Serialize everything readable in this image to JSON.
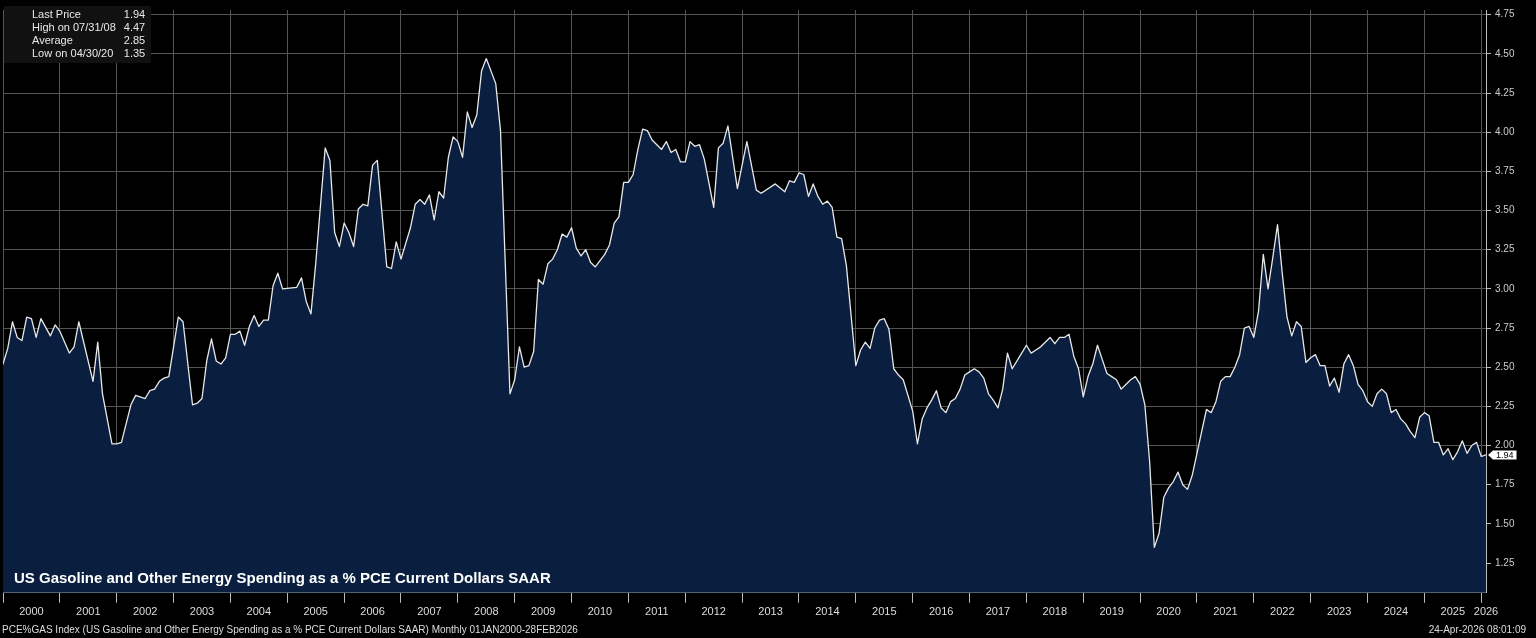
{
  "chart_data": {
    "type": "area",
    "title": "US Gasoline and Other Energy Spending as a % PCE Current Dollars SAAR",
    "x": [
      "2000-01",
      "2000-02",
      "2000-03",
      "2000-04",
      "2000-05",
      "2000-06",
      "2000-07",
      "2000-08",
      "2000-09",
      "2000-11",
      "2000-12",
      "2001-01",
      "2001-03",
      "2001-04",
      "2001-05",
      "2001-08",
      "2001-09",
      "2001-10",
      "2001-12",
      "2002-01",
      "2002-02",
      "2002-04",
      "2002-05",
      "2002-07",
      "2002-08",
      "2002-09",
      "2002-10",
      "2002-11",
      "2002-12",
      "2003-02",
      "2003-03",
      "2003-05",
      "2003-06",
      "2003-07",
      "2003-08",
      "2003-09",
      "2003-10",
      "2003-11",
      "2003-12",
      "2004-01",
      "2004-02",
      "2004-03",
      "2004-04",
      "2004-05",
      "2004-06",
      "2004-07",
      "2004-08",
      "2004-09",
      "2004-10",
      "2004-11",
      "2004-12",
      "2005-03",
      "2005-04",
      "2005-05",
      "2005-06",
      "2005-07",
      "2005-09",
      "2005-10",
      "2005-11",
      "2005-12",
      "2006-01",
      "2006-02",
      "2006-03",
      "2006-04",
      "2006-05",
      "2006-06",
      "2006-07",
      "2006-08",
      "2006-10",
      "2006-11",
      "2006-12",
      "2007-01",
      "2007-03",
      "2007-04",
      "2007-05",
      "2007-06",
      "2007-07",
      "2007-08",
      "2007-09",
      "2007-10",
      "2007-11",
      "2007-12",
      "2008-01",
      "2008-02",
      "2008-03",
      "2008-04",
      "2008-05",
      "2008-06",
      "2008-07",
      "2008-09",
      "2008-10",
      "2008-12",
      "2009-01",
      "2009-02",
      "2009-03",
      "2009-04",
      "2009-05",
      "2009-06",
      "2009-07",
      "2009-08",
      "2009-09",
      "2009-10",
      "2009-11",
      "2009-12",
      "2010-01",
      "2010-02",
      "2010-03",
      "2010-04",
      "2010-05",
      "2010-06",
      "2010-07",
      "2010-08",
      "2010-09",
      "2010-10",
      "2010-11",
      "2010-12",
      "2011-01",
      "2011-02",
      "2011-03",
      "2011-04",
      "2011-05",
      "2011-06",
      "2011-07",
      "2011-08",
      "2011-09",
      "2011-10",
      "2011-11",
      "2011-12",
      "2012-01",
      "2012-02",
      "2012-03",
      "2012-04",
      "2012-05",
      "2012-07",
      "2012-08",
      "2012-09",
      "2012-10",
      "2012-12",
      "2013-02",
      "2013-04",
      "2013-05",
      "2013-08",
      "2013-10",
      "2013-11",
      "2013-12",
      "2014-01",
      "2014-02",
      "2014-03",
      "2014-04",
      "2014-05",
      "2014-06",
      "2014-07",
      "2014-08",
      "2014-09",
      "2014-10",
      "2014-11",
      "2015-01",
      "2015-02",
      "2015-03",
      "2015-04",
      "2015-05",
      "2015-06",
      "2015-07",
      "2015-08",
      "2015-09",
      "2015-10",
      "2015-11",
      "2016-01",
      "2016-02",
      "2016-03",
      "2016-04",
      "2016-05",
      "2016-06",
      "2016-07",
      "2016-08",
      "2016-09",
      "2016-10",
      "2016-11",
      "2016-12",
      "2017-01",
      "2017-02",
      "2017-03",
      "2017-04",
      "2017-05",
      "2017-06",
      "2017-07",
      "2017-08",
      "2017-09",
      "2017-10",
      "2017-12",
      "2018-01",
      "2018-02",
      "2018-03",
      "2018-04",
      "2018-06",
      "2018-07",
      "2018-08",
      "2018-09",
      "2018-10",
      "2018-11",
      "2018-12",
      "2019-01",
      "2019-02",
      "2019-03",
      "2019-04",
      "2019-05",
      "2019-06",
      "2019-07",
      "2019-08",
      "2019-09",
      "2019-10",
      "2019-11",
      "2019-12",
      "2020-01",
      "2020-02",
      "2020-03",
      "2020-04",
      "2020-05",
      "2020-06",
      "2020-07",
      "2020-08",
      "2020-09",
      "2020-10",
      "2020-11",
      "2020-12",
      "2021-01",
      "2021-02",
      "2021-03",
      "2021-04",
      "2021-05",
      "2021-06",
      "2021-07",
      "2021-08",
      "2021-09",
      "2021-10",
      "2021-11",
      "2021-12",
      "2022-01",
      "2022-02",
      "2022-03",
      "2022-04",
      "2022-05",
      "2022-06",
      "2022-07",
      "2022-08",
      "2022-09",
      "2022-10",
      "2022-11",
      "2022-12",
      "2023-01",
      "2023-02",
      "2023-03",
      "2023-04",
      "2023-05",
      "2023-06",
      "2023-07",
      "2023-08",
      "2023-09",
      "2023-10",
      "2023-11",
      "2023-12",
      "2024-01",
      "2024-02",
      "2024-03",
      "2024-04",
      "2024-05",
      "2024-06",
      "2024-07",
      "2024-08",
      "2024-09",
      "2024-10",
      "2024-11",
      "2024-12",
      "2025-01",
      "2025-02",
      "2025-03",
      "2025-04",
      "2025-05",
      "2025-06",
      "2025-07",
      "2025-08",
      "2025-09",
      "2025-10",
      "2025-11",
      "2025-12",
      "2026-01",
      "2026-02"
    ],
    "series": [
      {
        "color": "#0a1f3f",
        "values": [
          2.52,
          2.62,
          2.79,
          2.69,
          2.67,
          2.82,
          2.81,
          2.69,
          2.81,
          2.7,
          2.77,
          2.73,
          2.59,
          2.63,
          2.79,
          2.41,
          2.66,
          2.33,
          2.01,
          2.01,
          2.02,
          2.26,
          2.32,
          2.3,
          2.35,
          2.36,
          2.41,
          2.43,
          2.44,
          2.82,
          2.79,
          2.26,
          2.27,
          2.3,
          2.54,
          2.68,
          2.54,
          2.52,
          2.56,
          2.71,
          2.71,
          2.73,
          2.64,
          2.76,
          2.83,
          2.76,
          2.8,
          2.8,
          3.02,
          3.1,
          3.0,
          3.01,
          3.07,
          2.92,
          2.84,
          3.16,
          3.9,
          3.82,
          3.36,
          3.27,
          3.42,
          3.36,
          3.27,
          3.51,
          3.54,
          3.53,
          3.79,
          3.82,
          3.14,
          3.13,
          3.3,
          3.19,
          3.39,
          3.54,
          3.57,
          3.54,
          3.6,
          3.44,
          3.62,
          3.58,
          3.84,
          3.97,
          3.94,
          3.84,
          4.13,
          4.03,
          4.11,
          4.39,
          4.47,
          4.31,
          4.01,
          2.33,
          2.42,
          2.63,
          2.5,
          2.51,
          2.6,
          3.06,
          3.03,
          3.16,
          3.19,
          3.25,
          3.35,
          3.33,
          3.39,
          3.26,
          3.21,
          3.25,
          3.17,
          3.14,
          3.18,
          3.22,
          3.28,
          3.42,
          3.46,
          3.68,
          3.68,
          3.73,
          3.89,
          4.02,
          4.01,
          3.95,
          3.92,
          3.89,
          3.94,
          3.87,
          3.89,
          3.81,
          3.81,
          3.94,
          3.91,
          3.92,
          3.83,
          3.52,
          3.9,
          3.93,
          4.04,
          3.64,
          3.94,
          3.63,
          3.61,
          3.67,
          3.62,
          3.69,
          3.68,
          3.74,
          3.73,
          3.59,
          3.67,
          3.59,
          3.54,
          3.56,
          3.52,
          3.33,
          3.32,
          3.15,
          2.51,
          2.61,
          2.66,
          2.62,
          2.75,
          2.8,
          2.81,
          2.74,
          2.49,
          2.45,
          2.42,
          2.22,
          2.01,
          2.17,
          2.24,
          2.29,
          2.35,
          2.24,
          2.21,
          2.28,
          2.3,
          2.36,
          2.45,
          2.47,
          2.49,
          2.47,
          2.43,
          2.33,
          2.29,
          2.24,
          2.36,
          2.59,
          2.49,
          2.59,
          2.64,
          2.59,
          2.61,
          2.63,
          2.69,
          2.65,
          2.69,
          2.69,
          2.71,
          2.57,
          2.49,
          2.31,
          2.44,
          2.52,
          2.64,
          2.55,
          2.46,
          2.44,
          2.42,
          2.36,
          2.39,
          2.42,
          2.44,
          2.39,
          2.26,
          1.9,
          1.35,
          1.44,
          1.67,
          1.73,
          1.77,
          1.83,
          1.75,
          1.72,
          1.81,
          1.95,
          2.09,
          2.23,
          2.21,
          2.28,
          2.41,
          2.44,
          2.44,
          2.5,
          2.58,
          2.75,
          2.76,
          2.69,
          2.86,
          3.22,
          3.0,
          3.2,
          3.41,
          3.1,
          2.82,
          2.7,
          2.79,
          2.76,
          2.53,
          2.56,
          2.58,
          2.51,
          2.51,
          2.38,
          2.43,
          2.34,
          2.52,
          2.58,
          2.51,
          2.39,
          2.35,
          2.28,
          2.25,
          2.33,
          2.36,
          2.33,
          2.21,
          2.23,
          2.17,
          2.14,
          2.09,
          2.05,
          2.18,
          2.21,
          2.19,
          2.02,
          2.02,
          1.94,
          1.98,
          1.91,
          1.96,
          2.03,
          1.95,
          2.0,
          2.02,
          1.93,
          1.94
        ]
      }
    ],
    "xlim": [
      "2000-01",
      "2026-02"
    ],
    "xticks": [
      {
        "value": "2000-01",
        "label": null
      },
      {
        "value": "2000-07",
        "label": "2000"
      },
      {
        "value": "2001-01",
        "label": null
      },
      {
        "value": "2001-07",
        "label": "2001"
      },
      {
        "value": "2002-01",
        "label": null
      },
      {
        "value": "2002-07",
        "label": "2002"
      },
      {
        "value": "2003-01",
        "label": null
      },
      {
        "value": "2003-07",
        "label": "2003"
      },
      {
        "value": "2004-01",
        "label": null
      },
      {
        "value": "2004-07",
        "label": "2004"
      },
      {
        "value": "2005-01",
        "label": null
      },
      {
        "value": "2005-07",
        "label": "2005"
      },
      {
        "value": "2006-01",
        "label": null
      },
      {
        "value": "2006-07",
        "label": "2006"
      },
      {
        "value": "2007-01",
        "label": null
      },
      {
        "value": "2007-07",
        "label": "2007"
      },
      {
        "value": "2008-01",
        "label": null
      },
      {
        "value": "2008-07",
        "label": "2008"
      },
      {
        "value": "2009-01",
        "label": null
      },
      {
        "value": "2009-07",
        "label": "2009"
      },
      {
        "value": "2010-01",
        "label": null
      },
      {
        "value": "2010-07",
        "label": "2010"
      },
      {
        "value": "2011-01",
        "label": null
      },
      {
        "value": "2011-07",
        "label": "2011"
      },
      {
        "value": "2012-01",
        "label": null
      },
      {
        "value": "2012-07",
        "label": "2012"
      },
      {
        "value": "2013-01",
        "label": null
      },
      {
        "value": "2013-07",
        "label": "2013"
      },
      {
        "value": "2014-01",
        "label": null
      },
      {
        "value": "2014-07",
        "label": "2014"
      },
      {
        "value": "2015-01",
        "label": null
      },
      {
        "value": "2015-07",
        "label": "2015"
      },
      {
        "value": "2016-01",
        "label": null
      },
      {
        "value": "2016-07",
        "label": "2016"
      },
      {
        "value": "2017-01",
        "label": null
      },
      {
        "value": "2017-07",
        "label": "2017"
      },
      {
        "value": "2018-01",
        "label": null
      },
      {
        "value": "2018-07",
        "label": "2018"
      },
      {
        "value": "2019-01",
        "label": null
      },
      {
        "value": "2019-07",
        "label": "2019"
      },
      {
        "value": "2020-01",
        "label": null
      },
      {
        "value": "2020-07",
        "label": "2020"
      },
      {
        "value": "2021-01",
        "label": null
      },
      {
        "value": "2021-07",
        "label": "2021"
      },
      {
        "value": "2022-01",
        "label": null
      },
      {
        "value": "2022-07",
        "label": "2022"
      },
      {
        "value": "2023-01",
        "label": null
      },
      {
        "value": "2023-07",
        "label": "2023"
      },
      {
        "value": "2024-01",
        "label": null
      },
      {
        "value": "2024-07",
        "label": "2024"
      },
      {
        "value": "2025-01",
        "label": null
      },
      {
        "value": "2025-07",
        "label": "2025"
      },
      {
        "value": "2026-01",
        "label": null
      },
      {
        "value": "2026-02",
        "label": "2026"
      }
    ],
    "ylim": [
      1.06,
      4.78
    ],
    "yticks": [
      {
        "value": 1.25,
        "label": "1.25"
      },
      {
        "value": 1.5,
        "label": "1.50"
      },
      {
        "value": 1.75,
        "label": "1.75"
      },
      {
        "value": 2,
        "label": "2.00"
      },
      {
        "value": 2.25,
        "label": "2.25"
      },
      {
        "value": 2.5,
        "label": "2.50"
      },
      {
        "value": 2.75,
        "label": "2.75"
      },
      {
        "value": 3,
        "label": "3.00"
      },
      {
        "value": 3.25,
        "label": "3.25"
      },
      {
        "value": 3.5,
        "label": "3.50"
      },
      {
        "value": 3.75,
        "label": "3.75"
      },
      {
        "value": 4,
        "label": "4.00"
      },
      {
        "value": 4.25,
        "label": "4.25"
      },
      {
        "value": 4.5,
        "label": "4.50"
      },
      {
        "value": 4.75,
        "label": "4.75"
      }
    ],
    "grid": true,
    "annotations": [
      "Last Price",
      "1.94",
      "High on 07/31/08",
      "4.47",
      "Average",
      "2.85",
      "Low on 04/30/20",
      "1.35",
      "PCE%GAS Index (US Gasoline and Other Energy Spending as a % PCE Current Dollars SAAR) Monthly 01JAN2000-28FEB2026",
      "24-Apr-2026 08:01:09",
      {
        "text": "1.94",
        "x": "2026-02",
        "y": 1.94
      }
    ]
  }
}
